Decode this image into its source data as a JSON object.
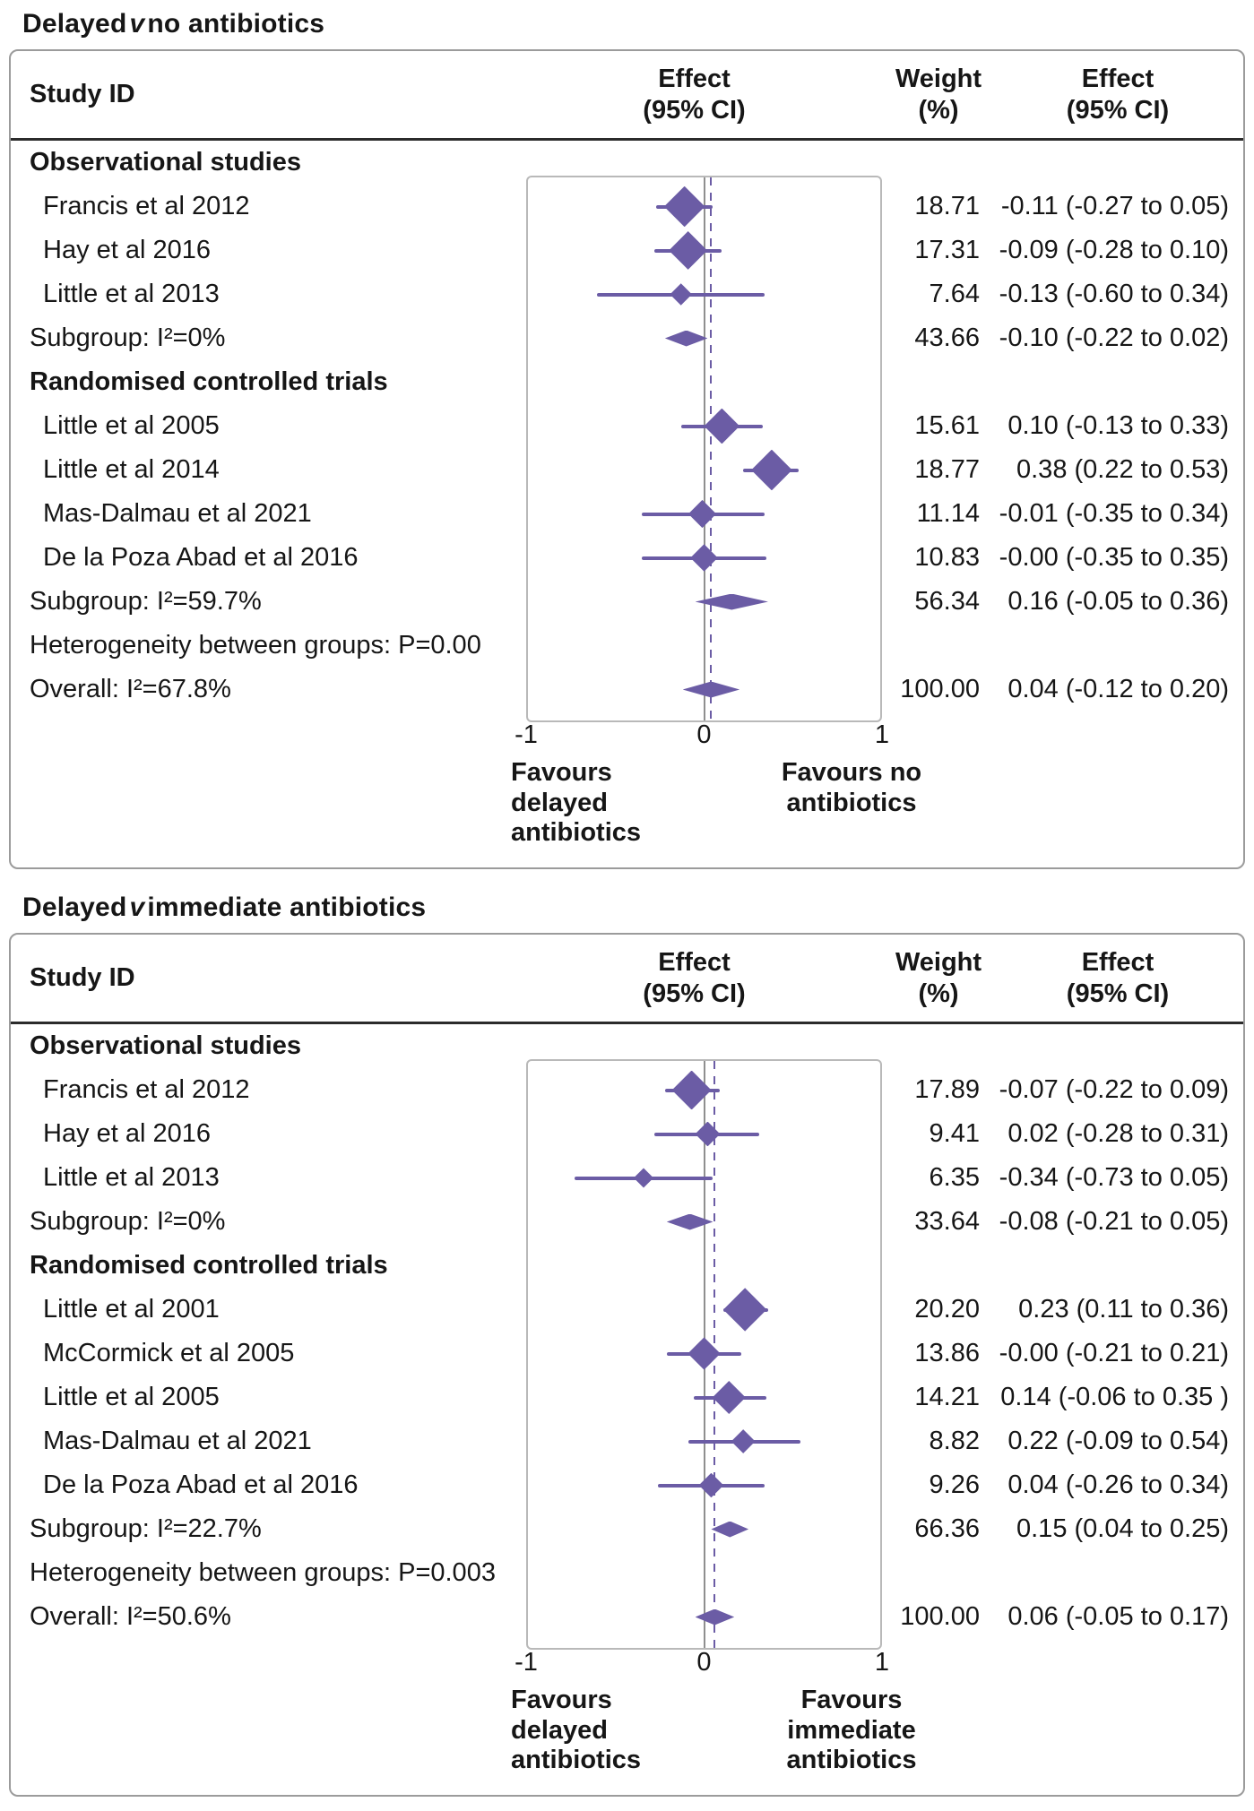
{
  "colors": {
    "accent": "#6b5ca5",
    "zero_line": "#8f8f8f",
    "box_border": "#9b9b9b",
    "header_rule": "#2b2b2b"
  },
  "columns": {
    "study": "Study ID",
    "effect_l1": "Effect",
    "effect_l2": "(95% CI)",
    "weight_l1": "Weight",
    "weight_l2": "(%)"
  },
  "chart_data": [
    {
      "type": "forest",
      "title": {
        "pre": "Delayed",
        "mid": "v",
        "post": "no antibiotics"
      },
      "axis": {
        "min": -1,
        "max": 1,
        "ticks": [
          -1,
          0,
          1
        ],
        "tick_labels": [
          "-1",
          "0",
          "1"
        ]
      },
      "favours_left": [
        "Favours",
        "delayed",
        "antibiotics"
      ],
      "favours_right": [
        "Favours no",
        "antibiotics"
      ],
      "overall_effect": 0.04,
      "rows": [
        {
          "type": "group",
          "label": "Observational studies"
        },
        {
          "type": "study",
          "label": "Francis et al 2012",
          "est": -0.11,
          "lo": -0.27,
          "hi": 0.05,
          "weight": 18.71,
          "weight_text": "18.71",
          "effect_text": "-0.11 (-0.27 to 0.05)"
        },
        {
          "type": "study",
          "label": "Hay et al 2016",
          "est": -0.09,
          "lo": -0.28,
          "hi": 0.1,
          "weight": 17.31,
          "weight_text": "17.31",
          "effect_text": "-0.09 (-0.28 to 0.10)"
        },
        {
          "type": "study",
          "label": "Little et al 2013",
          "est": -0.13,
          "lo": -0.6,
          "hi": 0.34,
          "weight": 7.64,
          "weight_text": "7.64",
          "effect_text": "-0.13 (-0.60 to 0.34)"
        },
        {
          "type": "pooled",
          "label": "Subgroup: I²=0%",
          "est": -0.1,
          "lo": -0.22,
          "hi": 0.02,
          "weight_text": "43.66",
          "effect_text": "-0.10 (-0.22 to 0.02)"
        },
        {
          "type": "group",
          "label": "Randomised controlled trials"
        },
        {
          "type": "study",
          "label": "Little et al 2005",
          "est": 0.1,
          "lo": -0.13,
          "hi": 0.33,
          "weight": 15.61,
          "weight_text": "15.61",
          "effect_text": "0.10 (-0.13 to 0.33)"
        },
        {
          "type": "study",
          "label": "Little et al 2014",
          "est": 0.38,
          "lo": 0.22,
          "hi": 0.53,
          "weight": 18.77,
          "weight_text": "18.77",
          "effect_text": "0.38 (0.22 to 0.53)"
        },
        {
          "type": "study",
          "label": "Mas-Dalmau et al 2021",
          "est": -0.01,
          "lo": -0.35,
          "hi": 0.34,
          "weight": 11.14,
          "weight_text": "11.14",
          "effect_text": "-0.01 (-0.35 to 0.34)"
        },
        {
          "type": "study",
          "label": "De la Poza Abad et al 2016",
          "est": 0,
          "lo": -0.35,
          "hi": 0.35,
          "weight": 10.83,
          "weight_text": "10.83",
          "effect_text": "-0.00 (-0.35 to 0.35)"
        },
        {
          "type": "pooled",
          "label": "Subgroup: I²=59.7%",
          "est": 0.16,
          "lo": -0.05,
          "hi": 0.36,
          "weight_text": "56.34",
          "effect_text": "0.16 (-0.05 to 0.36)"
        },
        {
          "type": "note",
          "label": "Heterogeneity between groups: P=0.00"
        },
        {
          "type": "overall",
          "label": "Overall: I²=67.8%",
          "est": 0.04,
          "lo": -0.12,
          "hi": 0.2,
          "weight_text": "100.00",
          "effect_text": "0.04 (-0.12 to 0.20)"
        }
      ]
    },
    {
      "type": "forest",
      "title": {
        "pre": "Delayed",
        "mid": "v",
        "post": "immediate antibiotics"
      },
      "axis": {
        "min": -1,
        "max": 1,
        "ticks": [
          -1,
          0,
          1
        ],
        "tick_labels": [
          "-1",
          "0",
          "1"
        ]
      },
      "favours_left": [
        "Favours",
        "delayed",
        "antibiotics"
      ],
      "favours_right": [
        "Favours",
        "immediate",
        "antibiotics"
      ],
      "overall_effect": 0.06,
      "rows": [
        {
          "type": "group",
          "label": "Observational studies"
        },
        {
          "type": "study",
          "label": "Francis et al 2012",
          "est": -0.07,
          "lo": -0.22,
          "hi": 0.09,
          "weight": 17.89,
          "weight_text": "17.89",
          "effect_text": "-0.07 (-0.22 to 0.09)"
        },
        {
          "type": "study",
          "label": "Hay et al 2016",
          "est": 0.02,
          "lo": -0.28,
          "hi": 0.31,
          "weight": 9.41,
          "weight_text": "9.41",
          "effect_text": "0.02 (-0.28 to 0.31)"
        },
        {
          "type": "study",
          "label": "Little et al 2013",
          "est": -0.34,
          "lo": -0.73,
          "hi": 0.05,
          "weight": 6.35,
          "weight_text": "6.35",
          "effect_text": "-0.34 (-0.73 to 0.05)"
        },
        {
          "type": "pooled",
          "label": "Subgroup: I²=0%",
          "est": -0.08,
          "lo": -0.21,
          "hi": 0.05,
          "weight_text": "33.64",
          "effect_text": "-0.08 (-0.21 to 0.05)"
        },
        {
          "type": "group",
          "label": "Randomised controlled trials"
        },
        {
          "type": "study",
          "label": "Little et al 2001",
          "est": 0.23,
          "lo": 0.11,
          "hi": 0.36,
          "weight": 20.2,
          "weight_text": "20.20",
          "effect_text": "0.23 (0.11 to 0.36)"
        },
        {
          "type": "study",
          "label": "McCormick et al 2005",
          "est": 0,
          "lo": -0.21,
          "hi": 0.21,
          "weight": 13.86,
          "weight_text": "13.86",
          "effect_text": "-0.00 (-0.21 to 0.21)"
        },
        {
          "type": "study",
          "label": "Little et al 2005",
          "est": 0.14,
          "lo": -0.06,
          "hi": 0.35,
          "weight": 14.21,
          "weight_text": "14.21",
          "effect_text": "0.14 (-0.06 to 0.35 )"
        },
        {
          "type": "study",
          "label": "Mas-Dalmau et al 2021",
          "est": 0.22,
          "lo": -0.09,
          "hi": 0.54,
          "weight": 8.82,
          "weight_text": "8.82",
          "effect_text": "0.22 (-0.09 to 0.54)"
        },
        {
          "type": "study",
          "label": "De la Poza Abad et al 2016",
          "est": 0.04,
          "lo": -0.26,
          "hi": 0.34,
          "weight": 9.26,
          "weight_text": "9.26",
          "effect_text": "0.04 (-0.26 to 0.34)"
        },
        {
          "type": "pooled",
          "label": "Subgroup: I²=22.7%",
          "est": 0.15,
          "lo": 0.04,
          "hi": 0.25,
          "weight_text": "66.36",
          "effect_text": "0.15 (0.04 to 0.25)"
        },
        {
          "type": "note",
          "label": "Heterogeneity between groups: P=0.003"
        },
        {
          "type": "overall",
          "label": "Overall: I²=50.6%",
          "est": 0.06,
          "lo": -0.05,
          "hi": 0.17,
          "weight_text": "100.00",
          "effect_text": "0.06 (-0.05 to 0.17)"
        }
      ]
    }
  ]
}
